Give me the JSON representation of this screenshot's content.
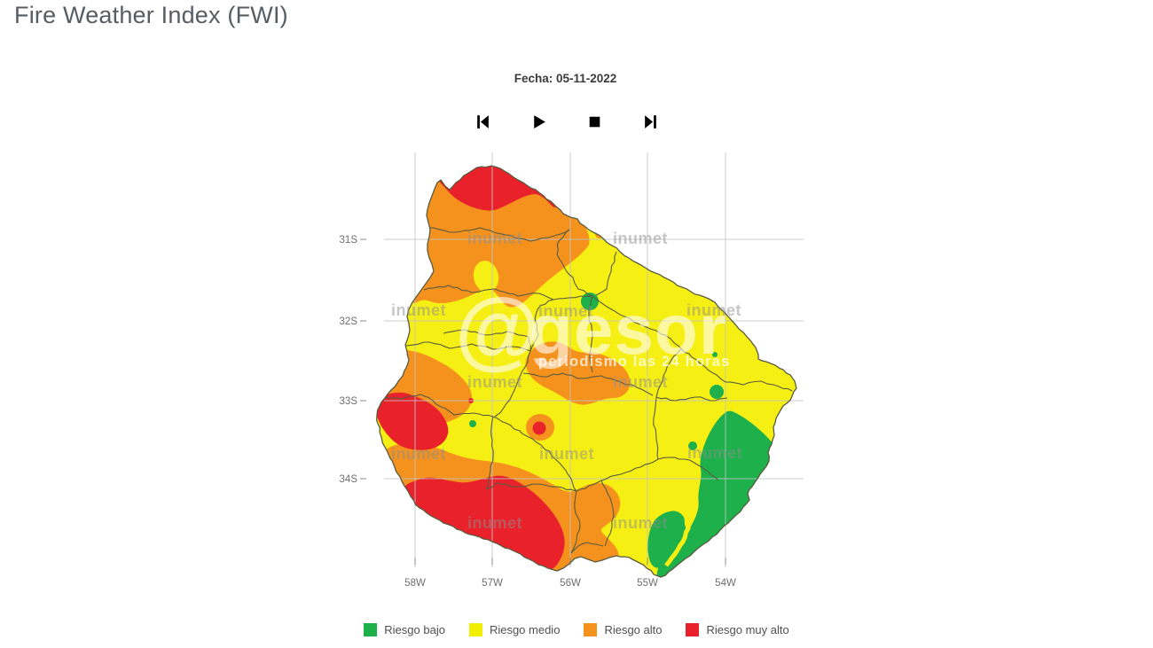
{
  "title": "Fire Weather Index (FWI)",
  "figure": {
    "date_label": "Fecha: 05-11-2022",
    "controls": [
      {
        "icon": "skip-start-icon"
      },
      {
        "icon": "play-icon"
      },
      {
        "icon": "stop-icon"
      },
      {
        "icon": "skip-end-icon"
      }
    ],
    "axes": {
      "lat": [
        "31S",
        "32S",
        "33S",
        "34S"
      ],
      "lon": [
        "58W",
        "57W",
        "56W",
        "55W",
        "54W"
      ]
    },
    "watermarks": {
      "brand": "inumet",
      "big_at": "@",
      "big_name": "gesor",
      "tagline": "periodismo las 24 horas"
    },
    "legend": {
      "items": [
        {
          "label": "Riesgo bajo",
          "color": "#1db04b"
        },
        {
          "label": "Riesgo medio",
          "color": "#f2ee00"
        },
        {
          "label": "Riesgo alto",
          "color": "#f5921e"
        },
        {
          "label": "Riesgo muy alto",
          "color": "#e9212a"
        }
      ]
    },
    "map_colors": {
      "low": "#1db04b",
      "medium": "#f6ef13",
      "high": "#f5921e",
      "very_high": "#e9212a",
      "grid": "#c4c4c4",
      "boundary": "#585b40"
    }
  }
}
